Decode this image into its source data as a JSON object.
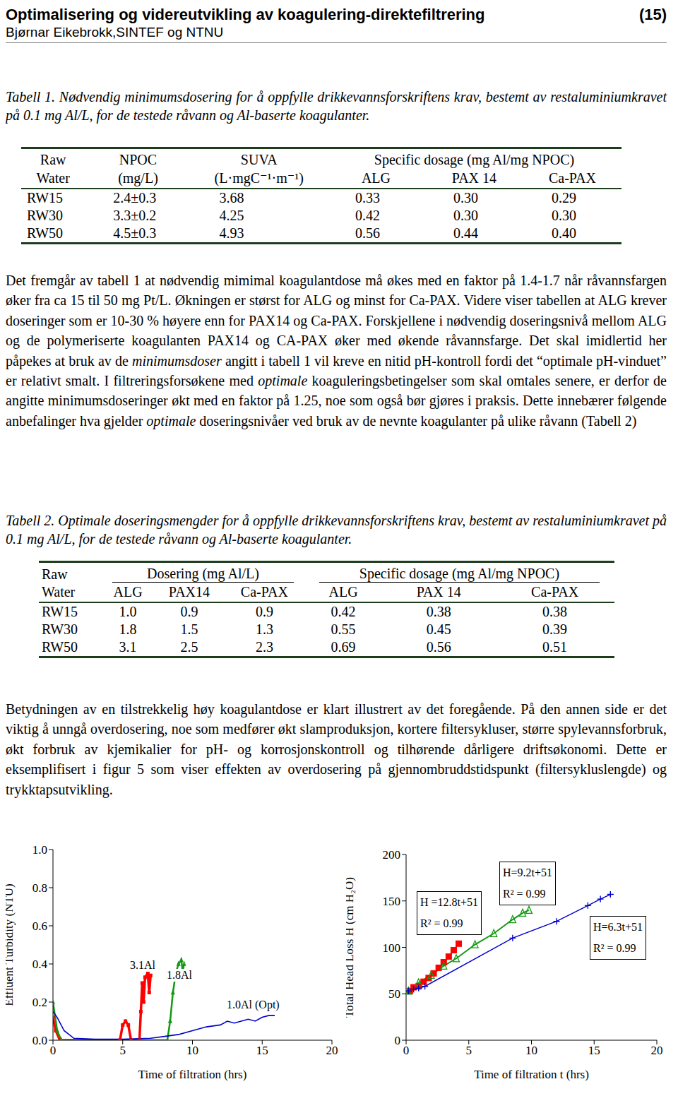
{
  "header": {
    "title": "Optimalisering og videreutvikling av koagulering-direktefiltrering",
    "page": "(15)",
    "author": "Bjørnar Eikebrokk,SINTEF og NTNU"
  },
  "table1": {
    "label": "Tabell 1.",
    "caption": " Nødvendig minimumsdosering for å oppfylle drikkevannsforskriftens krav, bestemt av restaluminiumkravet på 0.1 mg Al/L, for  de testede råvann og Al-baserte koagulanter.",
    "header_top": [
      "Raw",
      "NPOC",
      "SUVA",
      "Specific dosage (mg Al/mg NPOC)"
    ],
    "header_bottom": [
      "Water",
      "(mg/L)",
      "(L·mgC⁻¹·m⁻¹)",
      "ALG",
      "PAX 14",
      "Ca-PAX"
    ],
    "rows": [
      [
        "RW15",
        "2.4±0.3",
        "3.68",
        "0.33",
        "0.30",
        "0.29"
      ],
      [
        "RW30",
        "3.3±0.2",
        "4.25",
        "0.42",
        "0.30",
        "0.30"
      ],
      [
        "RW50",
        "4.5±0.3",
        "4.93",
        "0.56",
        "0.44",
        "0.40"
      ]
    ]
  },
  "paragraph1": [
    "Det fremgår av tabell 1 at nødvendig mimimal koagulantdose må økes med en faktor på 1.4-1.7 når råvannsfargen øker fra ca 15 til 50 mg Pt/L. Økningen er størst for ALG og minst for Ca-PAX. Videre viser tabellen at ALG krever doseringer som er 10-30 % høyere enn for PAX14 og Ca-PAX. Forskjellene i nødvendig doseringsnivå mellom ALG og de polymeriserte koagulanten PAX14 og CA-PAX øker med økende råvannsfarge. Det skal imidlertid her påpekes at bruk av de ",
    {
      "italic": "minimumsdoser"
    },
    " angitt i tabell 1 vil kreve en nitid pH-kontroll fordi det “optimale pH-vinduet” er relativt smalt. I filtreringsforsøkene med ",
    {
      "italic": "optimale"
    },
    " koaguleringsbetingelser som skal omtales senere, er derfor de angitte minimumsdoseringer økt med en faktor på 1.25, noe som også bør gjøres i praksis. Dette innebærer følgende anbefalinger hva gjelder ",
    {
      "italic": "optimale"
    },
    " doseringsnivåer ved bruk av de nevnte koagulanter på ulike råvann (Tabell 2)"
  ],
  "table2": {
    "label": "Tabell 2.",
    "caption": " Optimale doseringsmengder for å oppfylle drikkevannsforskriftens krav, bestemt av restaluminiumkravet på 0.1 mg Al/L, for  de testede råvann og Al-baserte koagulanter.",
    "header_top": [
      "Raw",
      "Dosering (mg Al/L)",
      "Specific dosage (mg Al/mg NPOC)"
    ],
    "header_bottom": [
      "Water",
      "ALG",
      "PAX14",
      "Ca-PAX",
      "ALG",
      "PAX 14",
      "Ca-PAX"
    ],
    "rows": [
      [
        "RW15",
        "1.0",
        "0.9",
        "0.9",
        "0.42",
        "0.38",
        "0.38"
      ],
      [
        "RW30",
        "1.8",
        "1.5",
        "1.3",
        "0.55",
        "0.45",
        "0.39"
      ],
      [
        "RW50",
        "3.1",
        "2.5",
        "2.3",
        "0.69",
        "0.56",
        "0.51"
      ]
    ]
  },
  "paragraph2": [
    "Betydningen av en tilstrekkelig høy koagulantdose er klart illustrert av det foregående. På den annen side er det viktig å unngå overdosering, noe som medfører økt slamproduksjon, kortere filtersykluser, større spylevannsforbruk, økt forbruk av kjemikalier for pH- og korrosjonskontroll og tilhørende dårligere driftsøkonomi. Dette er eksemplifisert i figur 5 som viser effekten av overdosering på gjennombruddstidspunkt (filtersykluslengde) og trykktapsutvikling."
  ],
  "chart_data": [
    {
      "type": "line",
      "xlabel": "Time of filtration (hrs)",
      "ylabel": "Effluent Turbidity (NTU)",
      "xlim": [
        0,
        20
      ],
      "xticks": [
        0,
        5,
        10,
        15,
        20
      ],
      "ylim": [
        0,
        1
      ],
      "yticks": [
        {
          "value": 0,
          "label": "0.0"
        },
        0.2,
        0.4,
        0.6,
        0.8,
        {
          "value": 1,
          "label": "1.0"
        }
      ],
      "annotations": [
        [
          "3.1Al"
        ],
        [
          "1.8Al"
        ],
        [
          "1.0Al (Opt)"
        ]
      ],
      "series": [
        {
          "color": "#ff0000",
          "marker": "square",
          "x": [
            0,
            0.2,
            0.5,
            4.8,
            5.0,
            5.2,
            5.4,
            5.6,
            6.2,
            6.3,
            6.4,
            6.5,
            6.6,
            6.8,
            6.9,
            7.0
          ],
          "values": [
            0.12,
            0.05,
            0,
            0,
            0.08,
            0.1,
            0.08,
            0,
            0,
            0.15,
            0.3,
            0.2,
            0.33,
            0.35,
            0.25,
            0.34
          ]
        },
        {
          "color": "#119911",
          "marker": "triangle",
          "x": [
            0,
            0.3,
            0.6,
            8.2,
            8.4,
            8.6,
            8.8,
            9.0,
            9.2,
            9.3,
            9.4
          ],
          "values": [
            0.2,
            0.05,
            0,
            0,
            0.1,
            0.25,
            0.35,
            0.4,
            0.42,
            0.36,
            0.4
          ]
        },
        {
          "color": "#0000cc",
          "x": [
            0,
            0.3,
            0.8,
            1.5,
            3,
            5,
            7,
            8,
            9,
            10,
            11,
            12,
            12.5,
            13,
            13.5,
            14,
            14.5,
            15,
            15.5,
            15.9
          ],
          "values": [
            0.15,
            0.12,
            0.05,
            0.01,
            0.005,
            0.005,
            0.01,
            0.02,
            0.03,
            0.05,
            0.07,
            0.08,
            0.1,
            0.09,
            0.1,
            0.11,
            0.1,
            0.12,
            0.13,
            0.13
          ]
        }
      ]
    },
    {
      "type": "line",
      "xlabel": "Time of filtration t (hrs)",
      "ylabel": "Total Head Loss H (cm H₂O)",
      "xlim": [
        0,
        20
      ],
      "xticks": [
        0,
        5,
        10,
        15,
        20
      ],
      "ylim": [
        0,
        200
      ],
      "yticks": [
        0,
        50,
        100,
        150,
        200
      ],
      "annotations": [
        [
          "H =12.8t+51",
          "R² = 0.99"
        ],
        [
          "H=9.2t+51",
          "R² = 0.99"
        ],
        [
          "H=6.3t+51",
          "R² = 0.99"
        ]
      ],
      "series": [
        {
          "color": "#ff0000",
          "marker": "square",
          "x": [
            0.3,
            0.6,
            1,
            1.4,
            1.8,
            2.2,
            2.6,
            3,
            3.4,
            3.8,
            4.2
          ],
          "values": [
            53,
            57,
            58,
            63,
            67,
            72,
            78,
            84,
            90,
            97,
            104
          ]
        },
        {
          "color": "#119911",
          "marker": "triangle",
          "x": [
            0.2,
            1,
            2,
            3,
            4,
            5.5,
            7,
            8.5,
            9.3,
            9.8
          ],
          "values": [
            53,
            62,
            70,
            80,
            88,
            103,
            115,
            130,
            137,
            140
          ]
        },
        {
          "color": "#0000cc",
          "marker": "plus",
          "x": [
            0.2,
            0.6,
            1,
            1.5,
            8.5,
            12,
            14.5,
            15.5,
            16.3
          ],
          "values": [
            53,
            55,
            56,
            58,
            110,
            128,
            145,
            152,
            157
          ]
        }
      ]
    }
  ]
}
